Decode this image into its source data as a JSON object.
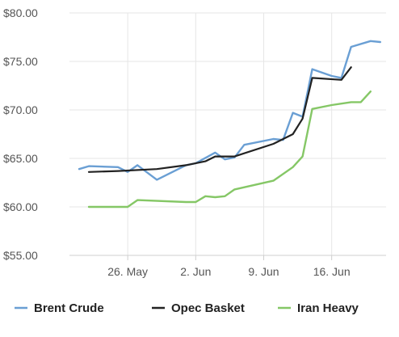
{
  "chart_data": {
    "type": "line",
    "title": "",
    "xlabel": "",
    "ylabel": "",
    "x_dates": [
      "2018-05-21",
      "2018-05-22",
      "2018-05-23",
      "2018-05-24",
      "2018-05-25",
      "2018-05-26",
      "2018-05-27",
      "2018-05-28",
      "2018-05-29",
      "2018-05-30",
      "2018-05-31",
      "2018-06-01",
      "2018-06-02",
      "2018-06-03",
      "2018-06-04",
      "2018-06-05",
      "2018-06-06",
      "2018-06-07",
      "2018-06-08",
      "2018-06-09",
      "2018-06-10",
      "2018-06-11",
      "2018-06-12",
      "2018-06-13",
      "2018-06-14",
      "2018-06-15",
      "2018-06-16",
      "2018-06-17",
      "2018-06-18",
      "2018-06-19"
    ],
    "x_ticks": [
      {
        "date": "2018-05-26",
        "label": "26. May"
      },
      {
        "date": "2018-06-02",
        "label": "2. Jun"
      },
      {
        "date": "2018-06-09",
        "label": "9. Jun"
      },
      {
        "date": "2018-06-16",
        "label": "16. Jun"
      }
    ],
    "ylim": [
      55,
      80
    ],
    "y_ticks": [
      {
        "value": 55,
        "label": "$55.00"
      },
      {
        "value": 60,
        "label": "$60.00"
      },
      {
        "value": 65,
        "label": "$65.00"
      },
      {
        "value": 70,
        "label": "$70.00"
      },
      {
        "value": 75,
        "label": "$75.00"
      },
      {
        "value": 80,
        "label": "$80.00"
      }
    ],
    "grid": true,
    "legend_position": "bottom",
    "series": [
      {
        "name": "Brent Crude",
        "color": "#6a9fd4",
        "points": [
          [
            "2018-05-21",
            63.9
          ],
          [
            "2018-05-22",
            64.2
          ],
          [
            "2018-05-25",
            64.1
          ],
          [
            "2018-05-26",
            63.6
          ],
          [
            "2018-05-27",
            64.3
          ],
          [
            "2018-05-29",
            62.8
          ],
          [
            "2018-06-01",
            64.3
          ],
          [
            "2018-06-02",
            64.5
          ],
          [
            "2018-06-04",
            65.6
          ],
          [
            "2018-06-05",
            64.9
          ],
          [
            "2018-06-06",
            65.1
          ],
          [
            "2018-06-07",
            66.4
          ],
          [
            "2018-06-10",
            67.0
          ],
          [
            "2018-06-11",
            66.9
          ],
          [
            "2018-06-12",
            69.7
          ],
          [
            "2018-06-13",
            69.3
          ],
          [
            "2018-06-14",
            74.2
          ],
          [
            "2018-06-16",
            73.5
          ],
          [
            "2018-06-17",
            73.3
          ],
          [
            "2018-06-18",
            76.5
          ],
          [
            "2018-06-20",
            77.1
          ],
          [
            "2018-06-21",
            77.0
          ]
        ]
      },
      {
        "name": "Opec Basket",
        "color": "#222222",
        "points": [
          [
            "2018-05-22",
            63.6
          ],
          [
            "2018-05-25",
            63.7
          ],
          [
            "2018-05-29",
            63.9
          ],
          [
            "2018-06-01",
            64.3
          ],
          [
            "2018-06-03",
            64.7
          ],
          [
            "2018-06-04",
            65.2
          ],
          [
            "2018-06-06",
            65.2
          ],
          [
            "2018-06-10",
            66.5
          ],
          [
            "2018-06-12",
            67.5
          ],
          [
            "2018-06-13",
            69.1
          ],
          [
            "2018-06-14",
            73.3
          ],
          [
            "2018-06-17",
            73.1
          ],
          [
            "2018-06-18",
            74.4
          ]
        ]
      },
      {
        "name": "Iran Heavy",
        "color": "#85c766",
        "points": [
          [
            "2018-05-22",
            60.0
          ],
          [
            "2018-05-26",
            60.0
          ],
          [
            "2018-05-27",
            60.7
          ],
          [
            "2018-06-01",
            60.5
          ],
          [
            "2018-06-02",
            60.5
          ],
          [
            "2018-06-03",
            61.1
          ],
          [
            "2018-06-04",
            61.0
          ],
          [
            "2018-06-05",
            61.1
          ],
          [
            "2018-06-06",
            61.8
          ],
          [
            "2018-06-10",
            62.7
          ],
          [
            "2018-06-12",
            64.1
          ],
          [
            "2018-06-13",
            65.2
          ],
          [
            "2018-06-14",
            70.1
          ],
          [
            "2018-06-16",
            70.5
          ],
          [
            "2018-06-18",
            70.8
          ],
          [
            "2018-06-19",
            70.8
          ],
          [
            "2018-06-20",
            71.9
          ]
        ]
      }
    ]
  }
}
